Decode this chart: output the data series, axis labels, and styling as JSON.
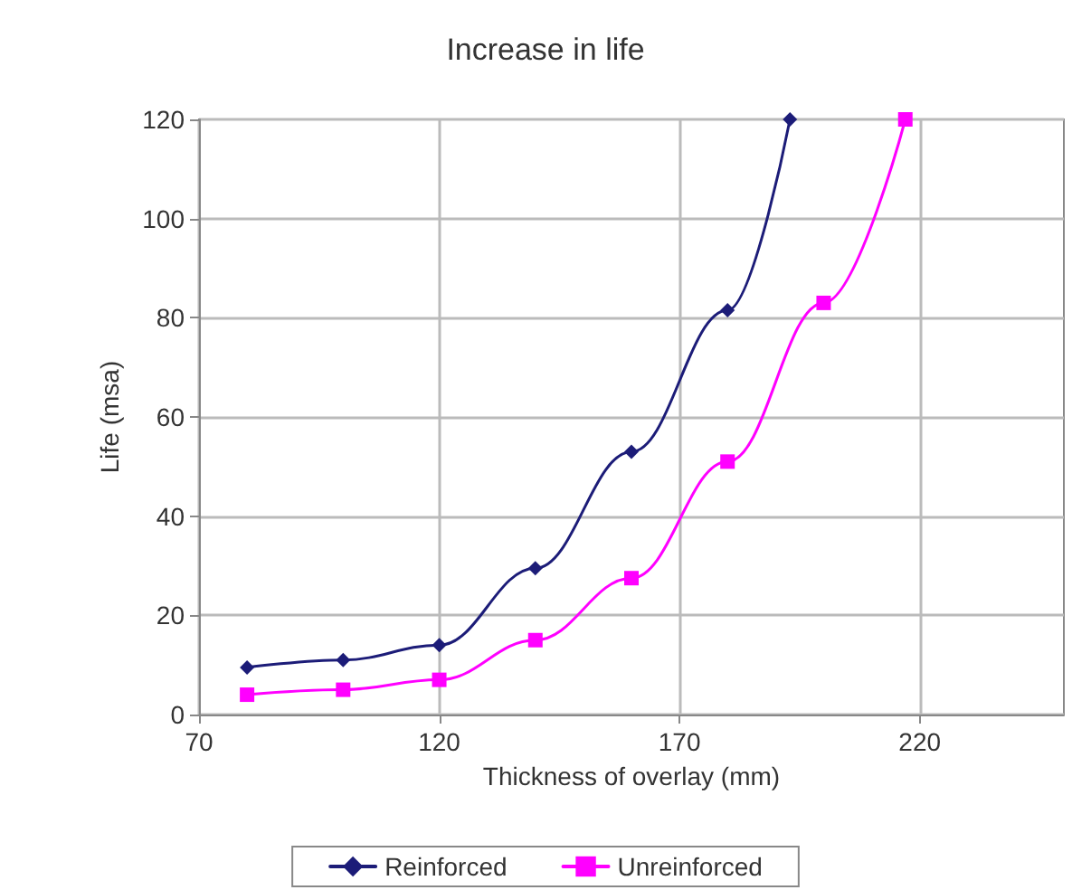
{
  "chart_data": {
    "type": "line",
    "title": "Increase in life",
    "xlabel": "Thickness of overlay (mm)",
    "ylabel": "Life (msa)",
    "xlim": [
      70,
      250
    ],
    "xticks": [
      70,
      120,
      170,
      220
    ],
    "ylim": [
      0,
      120
    ],
    "yticks": [
      0,
      20,
      40,
      60,
      80,
      100,
      120
    ],
    "grid": true,
    "legend": "bottom",
    "line_style": "solid",
    "series": [
      {
        "name": "Reinforced",
        "color": "#1c1c78",
        "marker": "diamond",
        "x": [
          80,
          100,
          120,
          140,
          160,
          180,
          193
        ],
        "values": [
          9.5,
          11,
          14,
          29.5,
          53,
          81.5,
          120
        ]
      },
      {
        "name": "Unreinforced",
        "color": "#ff00ff",
        "marker": "square",
        "x": [
          80,
          100,
          120,
          140,
          160,
          180,
          200,
          217
        ],
        "values": [
          4,
          5,
          7,
          15,
          27.5,
          51,
          83,
          120
        ]
      }
    ]
  }
}
